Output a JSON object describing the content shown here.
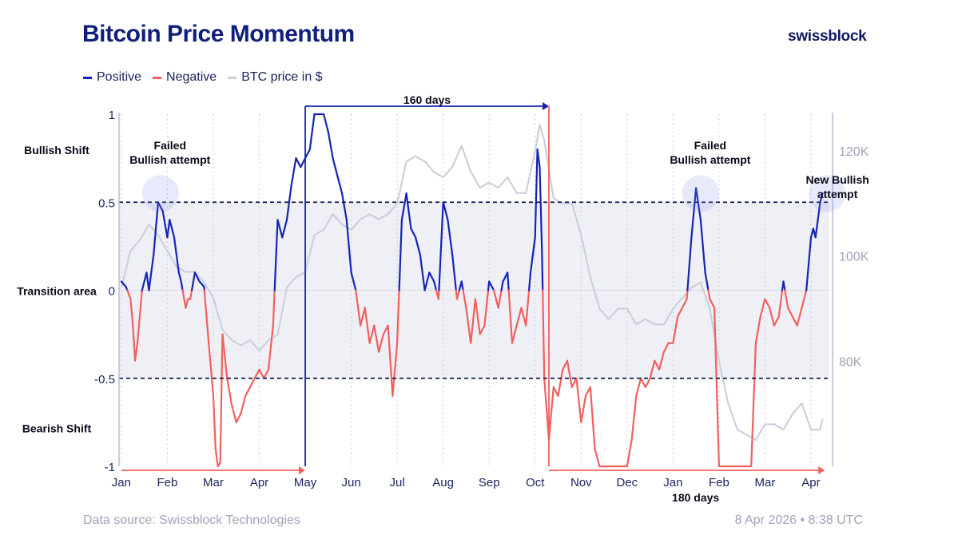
{
  "header": {
    "title": "Bitcoin Price Momentum",
    "brand": "swissblock"
  },
  "legend": [
    {
      "label": "Positive",
      "color": "#1424b4"
    },
    {
      "label": "Negative",
      "color": "#f0605e"
    },
    {
      "label": "BTC price in $",
      "color": "#c9ccdb"
    }
  ],
  "footer": {
    "source": "Data source: Swissblock Technologies",
    "timestamp": "8 Apr 2026 • 8:38 UTC"
  },
  "chart_data": {
    "type": "line",
    "title": "Bitcoin Price Momentum",
    "x_unit": "months since 1 Jan 2025",
    "xlim": [
      -0.05,
      15.4
    ],
    "ylim_left": [
      -1,
      1
    ],
    "ylim_right": [
      60000,
      127000
    ],
    "x_ticks": [
      {
        "label": "Jan",
        "value": 0
      },
      {
        "label": "Feb",
        "value": 1
      },
      {
        "label": "Mar",
        "value": 2
      },
      {
        "label": "Apr",
        "value": 3
      },
      {
        "label": "May",
        "value": 4
      },
      {
        "label": "Jun",
        "value": 5
      },
      {
        "label": "Jul",
        "value": 6
      },
      {
        "label": "Aug",
        "value": 7
      },
      {
        "label": "Sep",
        "value": 8
      },
      {
        "label": "Oct",
        "value": 9
      },
      {
        "label": "Nov",
        "value": 10
      },
      {
        "label": "Dec",
        "value": 11
      },
      {
        "label": "Jan",
        "value": 12
      },
      {
        "label": "Feb",
        "value": 13
      },
      {
        "label": "Mar",
        "value": 14
      },
      {
        "label": "Apr",
        "value": 15
      }
    ],
    "y_ticks_left": [
      {
        "label": "1",
        "value": 1
      },
      {
        "label": "0.5",
        "value": 0.5
      },
      {
        "label": "0",
        "value": 0
      },
      {
        "label": "-0.5",
        "value": -0.5
      },
      {
        "label": "-1",
        "value": -1
      }
    ],
    "y_ticks_right": [
      {
        "label": "120K",
        "value": 120000
      },
      {
        "label": "100K",
        "value": 100000
      },
      {
        "label": "80K",
        "value": 80000
      }
    ],
    "zone_labels": [
      {
        "label": "Bullish Shift",
        "value": 0.8
      },
      {
        "label": "Transition area",
        "value": 0
      },
      {
        "label": "Bearish Shift",
        "value": -0.78
      }
    ],
    "thresholds": [
      0.5,
      -0.5
    ],
    "transition_band": [
      -0.5,
      0.5
    ],
    "momentum": {
      "x": [
        0,
        0.1,
        0.2,
        0.25,
        0.3,
        0.35,
        0.4,
        0.45,
        0.55,
        0.6,
        0.7,
        0.8,
        0.9,
        1.0,
        1.05,
        1.1,
        1.15,
        1.2,
        1.25,
        1.3,
        1.4,
        1.45,
        1.5,
        1.6,
        1.7,
        1.8,
        1.9,
        2.0,
        2.05,
        2.1,
        2.15,
        2.2,
        2.3,
        2.4,
        2.5,
        2.6,
        2.7,
        2.8,
        2.9,
        3.0,
        3.1,
        3.2,
        3.3,
        3.4,
        3.5,
        3.6,
        3.7,
        3.8,
        3.9,
        4.0,
        4.1,
        4.2,
        4.3,
        4.4,
        4.5,
        4.6,
        4.7,
        4.8,
        4.9,
        5.0,
        5.1,
        5.2,
        5.3,
        5.4,
        5.5,
        5.6,
        5.7,
        5.8,
        5.9,
        6.0,
        6.1,
        6.2,
        6.3,
        6.4,
        6.5,
        6.6,
        6.7,
        6.8,
        6.9,
        7.0,
        7.1,
        7.2,
        7.3,
        7.4,
        7.5,
        7.6,
        7.7,
        7.8,
        7.9,
        8.0,
        8.1,
        8.2,
        8.3,
        8.4,
        8.5,
        8.6,
        8.7,
        8.8,
        8.9,
        9.0,
        9.05,
        9.1,
        9.15,
        9.2,
        9.3,
        9.4,
        9.5,
        9.6,
        9.7,
        9.8,
        9.9,
        10.0,
        10.1,
        10.2,
        10.3,
        10.4,
        10.5,
        10.6,
        10.7,
        10.8,
        10.9,
        11.0,
        11.1,
        11.2,
        11.3,
        11.4,
        11.5,
        11.6,
        11.7,
        11.8,
        11.9,
        12.0,
        12.1,
        12.2,
        12.3,
        12.4,
        12.5,
        12.6,
        12.7,
        12.8,
        12.9,
        13.0,
        13.1,
        13.2,
        13.3,
        13.4,
        13.5,
        13.6,
        13.7,
        13.8,
        13.9,
        14.0,
        14.1,
        14.2,
        14.3,
        14.4,
        14.5,
        14.6,
        14.7,
        14.8,
        14.9,
        15.0,
        15.05,
        15.1,
        15.15,
        15.2,
        15.25
      ],
      "y": [
        0.05,
        0.02,
        -0.05,
        -0.2,
        -0.4,
        -0.3,
        -0.15,
        0.0,
        0.1,
        0.0,
        0.2,
        0.5,
        0.45,
        0.3,
        0.4,
        0.35,
        0.3,
        0.2,
        0.1,
        0.05,
        -0.1,
        -0.05,
        -0.05,
        0.1,
        0.05,
        0.02,
        -0.3,
        -0.6,
        -0.9,
        -1.0,
        -0.98,
        -0.25,
        -0.5,
        -0.65,
        -0.75,
        -0.7,
        -0.6,
        -0.55,
        -0.5,
        -0.45,
        -0.5,
        -0.45,
        -0.2,
        0.4,
        0.3,
        0.4,
        0.6,
        0.75,
        0.7,
        0.75,
        0.8,
        1.0,
        1.0,
        1.0,
        0.9,
        0.75,
        0.65,
        0.55,
        0.4,
        0.1,
        0.0,
        -0.2,
        -0.1,
        -0.3,
        -0.2,
        -0.35,
        -0.25,
        -0.2,
        -0.6,
        -0.3,
        0.4,
        0.55,
        0.35,
        0.3,
        0.2,
        0.0,
        0.1,
        0.05,
        -0.05,
        0.5,
        0.4,
        0.2,
        -0.05,
        0.05,
        -0.1,
        -0.3,
        -0.05,
        -0.25,
        -0.2,
        0.05,
        0.0,
        -0.1,
        0.05,
        0.1,
        -0.3,
        -0.2,
        -0.1,
        -0.2,
        0.1,
        0.3,
        0.8,
        0.7,
        0.2,
        -0.5,
        -0.85,
        -0.55,
        -0.6,
        -0.45,
        -0.4,
        -0.55,
        -0.5,
        -0.75,
        -0.6,
        -0.55,
        -0.9,
        -1.0,
        -1.0,
        -1.0,
        -1.0,
        -1.0,
        -1.0,
        -1.0,
        -0.85,
        -0.6,
        -0.5,
        -0.55,
        -0.5,
        -0.4,
        -0.45,
        -0.35,
        -0.3,
        -0.3,
        -0.15,
        -0.1,
        -0.05,
        0.3,
        0.58,
        0.4,
        0.1,
        -0.05,
        -0.1,
        -1.0,
        -1.0,
        -1.0,
        -1.0,
        -1.0,
        -1.0,
        -1.0,
        -1.0,
        -0.3,
        -0.15,
        -0.05,
        -0.1,
        -0.2,
        -0.15,
        0.05,
        -0.1,
        -0.15,
        -0.2,
        -0.1,
        0.0,
        0.3,
        0.35,
        0.3,
        0.4,
        0.5,
        0.55
      ]
    },
    "btc_price": {
      "x": [
        0,
        0.2,
        0.4,
        0.6,
        0.8,
        1.0,
        1.2,
        1.4,
        1.6,
        1.8,
        2.0,
        2.2,
        2.4,
        2.6,
        2.8,
        3.0,
        3.2,
        3.4,
        3.6,
        3.8,
        4.0,
        4.2,
        4.4,
        4.6,
        4.8,
        5.0,
        5.2,
        5.4,
        5.6,
        5.8,
        6.0,
        6.2,
        6.4,
        6.6,
        6.8,
        7.0,
        7.2,
        7.4,
        7.6,
        7.8,
        8.0,
        8.2,
        8.4,
        8.6,
        8.8,
        9.0,
        9.1,
        9.2,
        9.4,
        9.6,
        9.8,
        10.0,
        10.2,
        10.4,
        10.6,
        10.8,
        11.0,
        11.2,
        11.4,
        11.6,
        11.8,
        12.0,
        12.2,
        12.4,
        12.6,
        12.8,
        13.0,
        13.2,
        13.4,
        13.6,
        13.8,
        14.0,
        14.2,
        14.4,
        14.6,
        14.8,
        15.0,
        15.2,
        15.25
      ],
      "y": [
        94000,
        101000,
        103000,
        106000,
        104000,
        101000,
        98000,
        97000,
        97000,
        95000,
        92000,
        86000,
        84000,
        83000,
        84000,
        82000,
        84000,
        85000,
        94000,
        96000,
        97000,
        104000,
        105000,
        108000,
        106000,
        105000,
        107000,
        108000,
        107000,
        108000,
        110000,
        118000,
        119000,
        118000,
        116000,
        115000,
        117000,
        121000,
        116000,
        113000,
        114000,
        113000,
        115000,
        112000,
        112000,
        120000,
        125000,
        122000,
        111000,
        110000,
        110000,
        104000,
        96000,
        90000,
        88000,
        90000,
        90000,
        87000,
        88000,
        87000,
        87000,
        90000,
        92000,
        94000,
        95000,
        90000,
        80000,
        72000,
        67000,
        66000,
        65000,
        68000,
        68000,
        67000,
        70000,
        72000,
        67000,
        67000,
        69000
      ]
    },
    "highlights": [
      {
        "label": "Failed\nBullish attempt",
        "x": 0.85,
        "y": 0.55
      },
      {
        "label": "Failed\nBullish attempt",
        "x": 12.6,
        "y": 0.55
      },
      {
        "label": "New Bullish\nattempt",
        "x": 15.35,
        "y": 0.55
      }
    ],
    "spans": [
      {
        "label": "160 days",
        "x_start": 4.0,
        "x_end": 9.3,
        "side": "top",
        "color": "#1424b4"
      },
      {
        "label": "180 days",
        "x_start": 9.3,
        "x_end": 15.3,
        "side": "bottom",
        "color": "#f0605e"
      },
      {
        "label": "",
        "x_start": 0,
        "x_end": 4.0,
        "side": "bottom",
        "color": "#f0605e"
      }
    ]
  }
}
